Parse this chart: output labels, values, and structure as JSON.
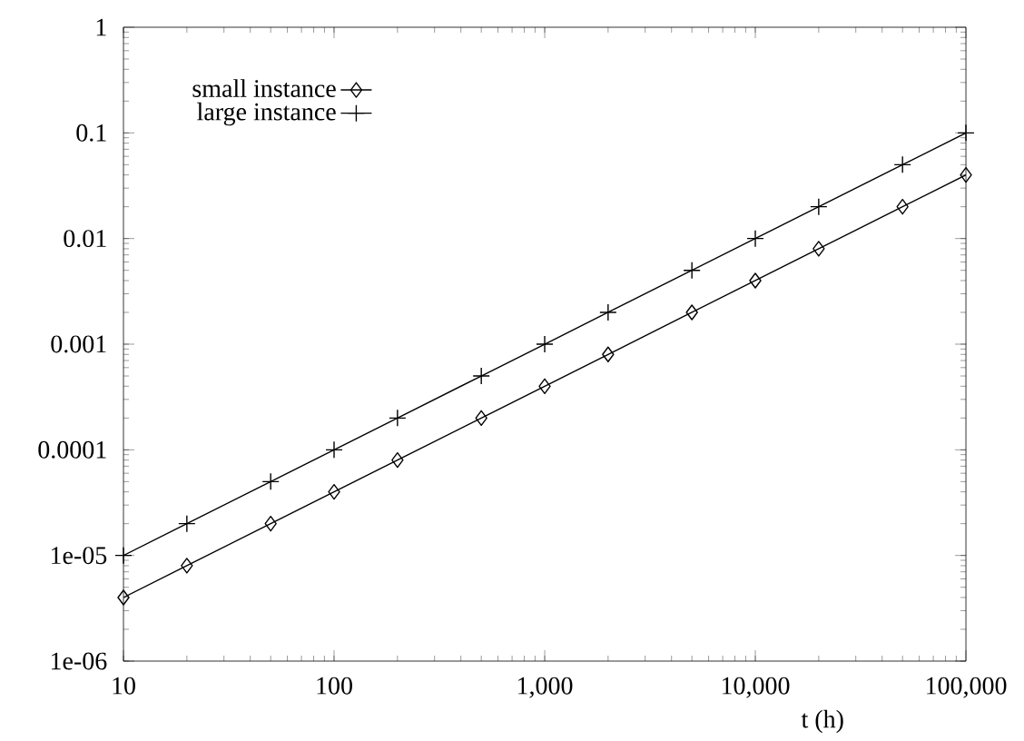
{
  "chart_data": {
    "type": "line",
    "xlabel": "t (h)",
    "log": "xy",
    "x": [
      10,
      20,
      50,
      100,
      200,
      500,
      1000,
      2000,
      5000,
      10000,
      20000,
      50000,
      100000
    ],
    "series": [
      {
        "name": "small instance",
        "color": "#000000",
        "marker": "diamond",
        "values": [
          4e-06,
          8e-06,
          2e-05,
          4e-05,
          8e-05,
          0.0002,
          0.0004,
          0.0008,
          0.002,
          0.004,
          0.008,
          0.02,
          0.04
        ]
      },
      {
        "name": "large instance",
        "color": "#000000",
        "marker": "cross",
        "values": [
          1e-05,
          2e-05,
          5e-05,
          0.0001,
          0.0002,
          0.0005,
          0.001,
          0.002,
          0.005,
          0.01,
          0.02,
          0.05,
          0.1
        ]
      }
    ],
    "xlim": [
      10,
      100000
    ],
    "ylim": [
      1e-06,
      1
    ],
    "xticks": [
      10,
      100,
      {
        "value": 1000,
        "label": "1,000"
      },
      {
        "value": 10000,
        "label": "10,000"
      },
      {
        "value": 100000,
        "label": "100,000"
      }
    ],
    "yticks": [
      {
        "value": 1e-06,
        "label": "1e-06"
      },
      {
        "value": 1e-05,
        "label": "1e-05"
      },
      0.0001,
      0.001,
      0.01,
      0.1,
      1
    ],
    "legend": "top left",
    "line_style": "solid",
    "grid": false
  }
}
